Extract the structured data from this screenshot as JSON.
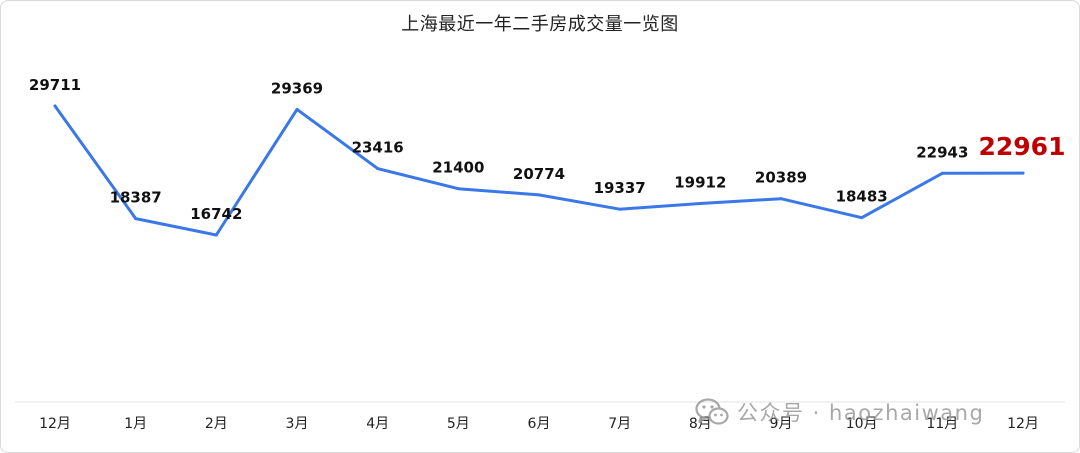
{
  "chart_data": {
    "type": "line",
    "title": "上海最近一年二手房成交量一览图",
    "categories": [
      "12月",
      "1月",
      "2月",
      "3月",
      "4月",
      "5月",
      "6月",
      "7月",
      "8月",
      "9月",
      "10月",
      "11月",
      "12月"
    ],
    "series": [
      {
        "values": [
          29711,
          18387,
          16742,
          29369,
          23416,
          21400,
          20774,
          19337,
          19912,
          20389,
          18483,
          22943,
          22961
        ]
      }
    ],
    "highlight": {
      "index": 12,
      "color": "#c00000"
    },
    "line_color": "#3b78e7",
    "drop_line_color": "#c7d8f4",
    "grid": false,
    "legend": "none"
  },
  "watermark": {
    "icon": "wechat-icon",
    "text": "公众号 · haozhaiwang"
  }
}
